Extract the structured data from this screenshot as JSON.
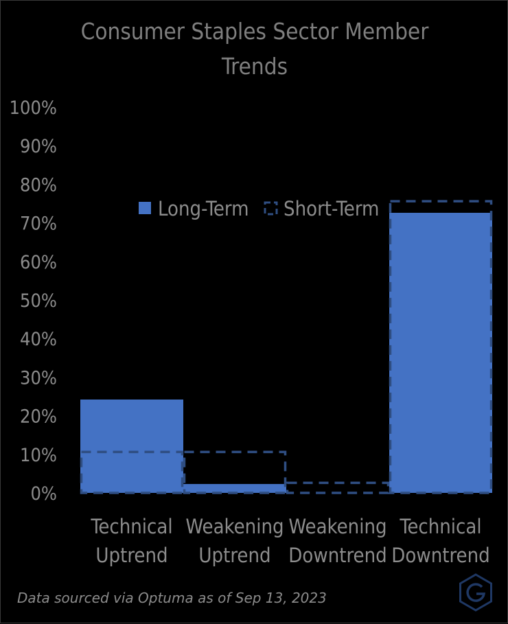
{
  "colors": {
    "background": "#000000",
    "long_term": "#4472C4",
    "short_term_outline": "#2F4E82",
    "text": "#8C8C8C",
    "logo": "#1F3864"
  },
  "footer": {
    "source": "Data sourced via Optuma as of Sep 13, 2023",
    "logo_icon": "optuma-g-hexagon-icon"
  },
  "chart_data": {
    "type": "bar",
    "title": [
      "Consumer Staples Sector Member",
      "Trends"
    ],
    "categories": [
      [
        "Technical",
        "Uptrend"
      ],
      [
        "Weakening",
        "Uptrend"
      ],
      [
        "Weakening",
        "Downtrend"
      ],
      [
        "Technical",
        "Downtrend"
      ]
    ],
    "series": [
      {
        "name": "Long-Term",
        "style": "filled",
        "values": [
          24.2,
          2.3,
          0.0,
          72.6
        ]
      },
      {
        "name": "Short-Term",
        "style": "dashed-outline",
        "values": [
          10.6,
          10.6,
          2.6,
          75.6
        ]
      }
    ],
    "ylim": [
      0,
      100
    ],
    "yticks": [
      "0%",
      "10%",
      "20%",
      "30%",
      "40%",
      "50%",
      "60%",
      "70%",
      "80%",
      "90%",
      "100%"
    ],
    "y_unit": "%",
    "legend": "top-right, inside plot",
    "grid": false
  }
}
